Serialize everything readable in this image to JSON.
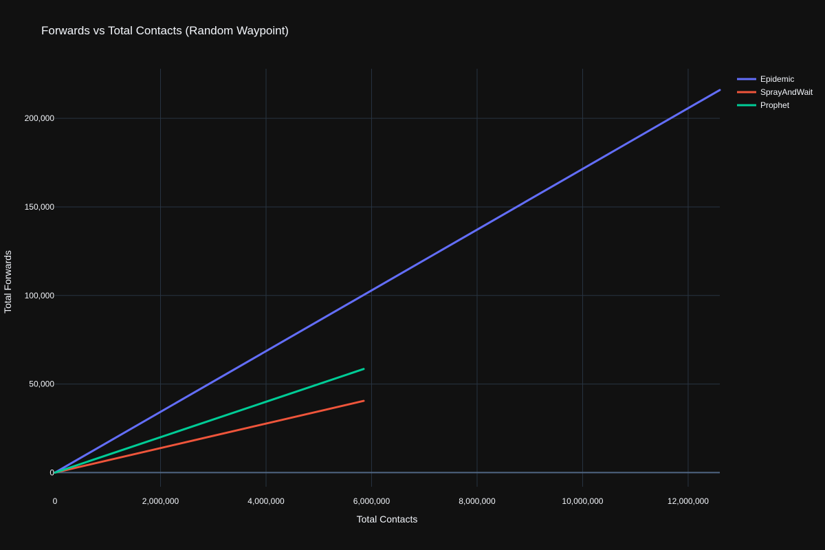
{
  "chart_data": {
    "type": "line",
    "title": "Forwards vs Total Contacts (Random Waypoint)",
    "xlabel": "Total Contacts",
    "ylabel": "Total Forwards",
    "xlim": [
      0,
      12600000
    ],
    "ylim": [
      -8000,
      228000
    ],
    "x_ticks": [
      0,
      2000000,
      4000000,
      6000000,
      8000000,
      10000000,
      12000000
    ],
    "x_tick_labels": [
      "0",
      "2,000,000",
      "4,000,000",
      "6,000,000",
      "8,000,000",
      "10,000,000",
      "12,000,000"
    ],
    "y_ticks": [
      0,
      50000,
      100000,
      150000,
      200000
    ],
    "y_tick_labels": [
      "0",
      "50,000",
      "100,000",
      "150,000",
      "200,000"
    ],
    "grid": true,
    "legend_position": "top-right",
    "series": [
      {
        "name": "Epidemic",
        "color": "#636efa",
        "x": [
          0,
          12600000
        ],
        "y": [
          0,
          216000
        ]
      },
      {
        "name": "SprayAndWait",
        "color": "#ef553b",
        "x": [
          0,
          5850000
        ],
        "y": [
          0,
          40500
        ]
      },
      {
        "name": "Prophet",
        "color": "#00cc96",
        "x": [
          0,
          5850000
        ],
        "y": [
          0,
          58500
        ]
      }
    ]
  }
}
